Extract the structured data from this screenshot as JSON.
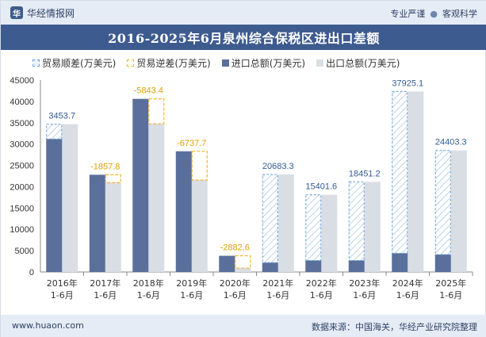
{
  "header": {
    "brand": "华经情报网",
    "logo_letter": "华",
    "tags": [
      "专业严谨",
      "客观科学"
    ],
    "tag_separator": "●"
  },
  "title": "2016-2025年6月泉州综合保税区进出口差额",
  "legend": {
    "surplus": "贸易顺差(万美元)",
    "deficit": "贸易逆差(万美元)",
    "import": "进口总额(万美元)",
    "export": "出口总额(万美元)"
  },
  "footer": {
    "url": "www.huaon.com",
    "source": "数据来源：中国海关，华经产业研究院整理"
  },
  "colors": {
    "import": "#5a6f9b",
    "export": "#d9dde4",
    "surplus_line": "#6aa3d8",
    "surplus_label": "#2f5b96",
    "deficit_line": "#f2b52c",
    "deficit_label": "#e0a100"
  },
  "chart_data": {
    "type": "bar",
    "title": "2016-2025年6月泉州综合保税区进出口差额",
    "categories": [
      "2016年1-6月",
      "2017年1-6月",
      "2018年1-6月",
      "2019年1-6月",
      "2020年1-6月",
      "2021年1-6月",
      "2022年1-6月",
      "2023年1-6月",
      "2024年1-6月",
      "2025年1-6月"
    ],
    "category_lines": [
      [
        "2016年",
        "1-6月"
      ],
      [
        "2017年",
        "1-6月"
      ],
      [
        "2018年",
        "1-6月"
      ],
      [
        "2019年",
        "1-6月"
      ],
      [
        "2020年",
        "1-6月"
      ],
      [
        "2021年",
        "1-6月"
      ],
      [
        "2022年",
        "1-6月"
      ],
      [
        "2023年",
        "1-6月"
      ],
      [
        "2024年",
        "1-6月"
      ],
      [
        "2025年",
        "1-6月"
      ]
    ],
    "series": [
      {
        "name": "进口总额(万美元)",
        "values": [
          31200,
          22800,
          40600,
          28300,
          3800,
          2200,
          2700,
          2700,
          4400,
          4100
        ]
      },
      {
        "name": "出口总额(万美元)",
        "values": [
          34654,
          20942,
          34757,
          21562,
          918,
          22883,
          18102,
          21151,
          42325,
          28503
        ]
      }
    ],
    "balance": {
      "labels": [
        "3453.7",
        "-1857.8",
        "-5843.4",
        "-6737.7",
        "-2882.6",
        "20683.3",
        "15401.6",
        "18451.2",
        "37925.1",
        "24403.3"
      ],
      "values": [
        3453.7,
        -1857.8,
        -5843.4,
        -6737.7,
        -2882.6,
        20683.3,
        15401.6,
        18451.2,
        37925.1,
        24403.3
      ]
    },
    "yticks": [
      0,
      5000,
      10000,
      15000,
      20000,
      25000,
      30000,
      35000,
      40000,
      45000
    ],
    "ylim": [
      0,
      45000
    ],
    "xlabel": "",
    "ylabel": ""
  }
}
